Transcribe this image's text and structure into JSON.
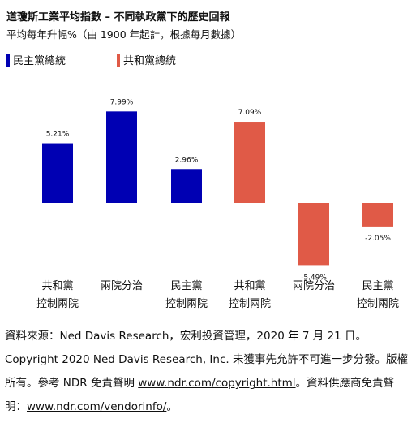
{
  "title": "道瓊斯工業平均指數 – 不同執政黨下的歷史回報",
  "subtitle": "平均每年升幅%（由 1900 年起計，根據每月數據）",
  "legend": [
    {
      "label": "民主黨總統",
      "color": "#0000b3"
    },
    {
      "label": "共和黨總統",
      "color": "#e05a47"
    }
  ],
  "chart_data": {
    "type": "bar",
    "title": "道瓊斯工業平均指數 – 不同執政黨下的歷史回報",
    "subtitle": "平均每年升幅%（由 1900 年起計，根據每月數據）",
    "ylabel": "",
    "xlabel": "",
    "grid": false,
    "legend_position": "top-left",
    "series": [
      {
        "name": "民主黨總統",
        "color": "#0000b3",
        "categories": [
          [
            "共和黨",
            "控制兩院"
          ],
          [
            "兩院分治"
          ],
          [
            "民主黨",
            "控制兩院"
          ]
        ],
        "values": [
          5.21,
          7.99,
          2.96
        ],
        "labels": [
          "5.21%",
          "7.99%",
          "2.96%"
        ]
      },
      {
        "name": "共和黨總統",
        "color": "#e05a47",
        "categories": [
          [
            "共和黨",
            "控制兩院"
          ],
          [
            "兩院分治"
          ],
          [
            "民主黨",
            "控制兩院"
          ]
        ],
        "values": [
          7.09,
          -5.49,
          -2.05
        ],
        "labels": [
          "7.09%",
          "-5.49%",
          "-2.05%"
        ]
      }
    ]
  },
  "footnote": {
    "source_text": "資料來源：Ned Davis Research，宏利投資管理，2020 年 7 月 21 日。Copyright 2020 Ned Davis Research, Inc. 未獲事先允許不可進一步分發。版權所有。參考 NDR 免責聲明 ",
    "link1": "www.ndr.com/copyright.html",
    "mid_text": "。資料供應商免責聲明：",
    "link2": "www.ndr.com/vendorinfo/",
    "end_text": "。"
  }
}
